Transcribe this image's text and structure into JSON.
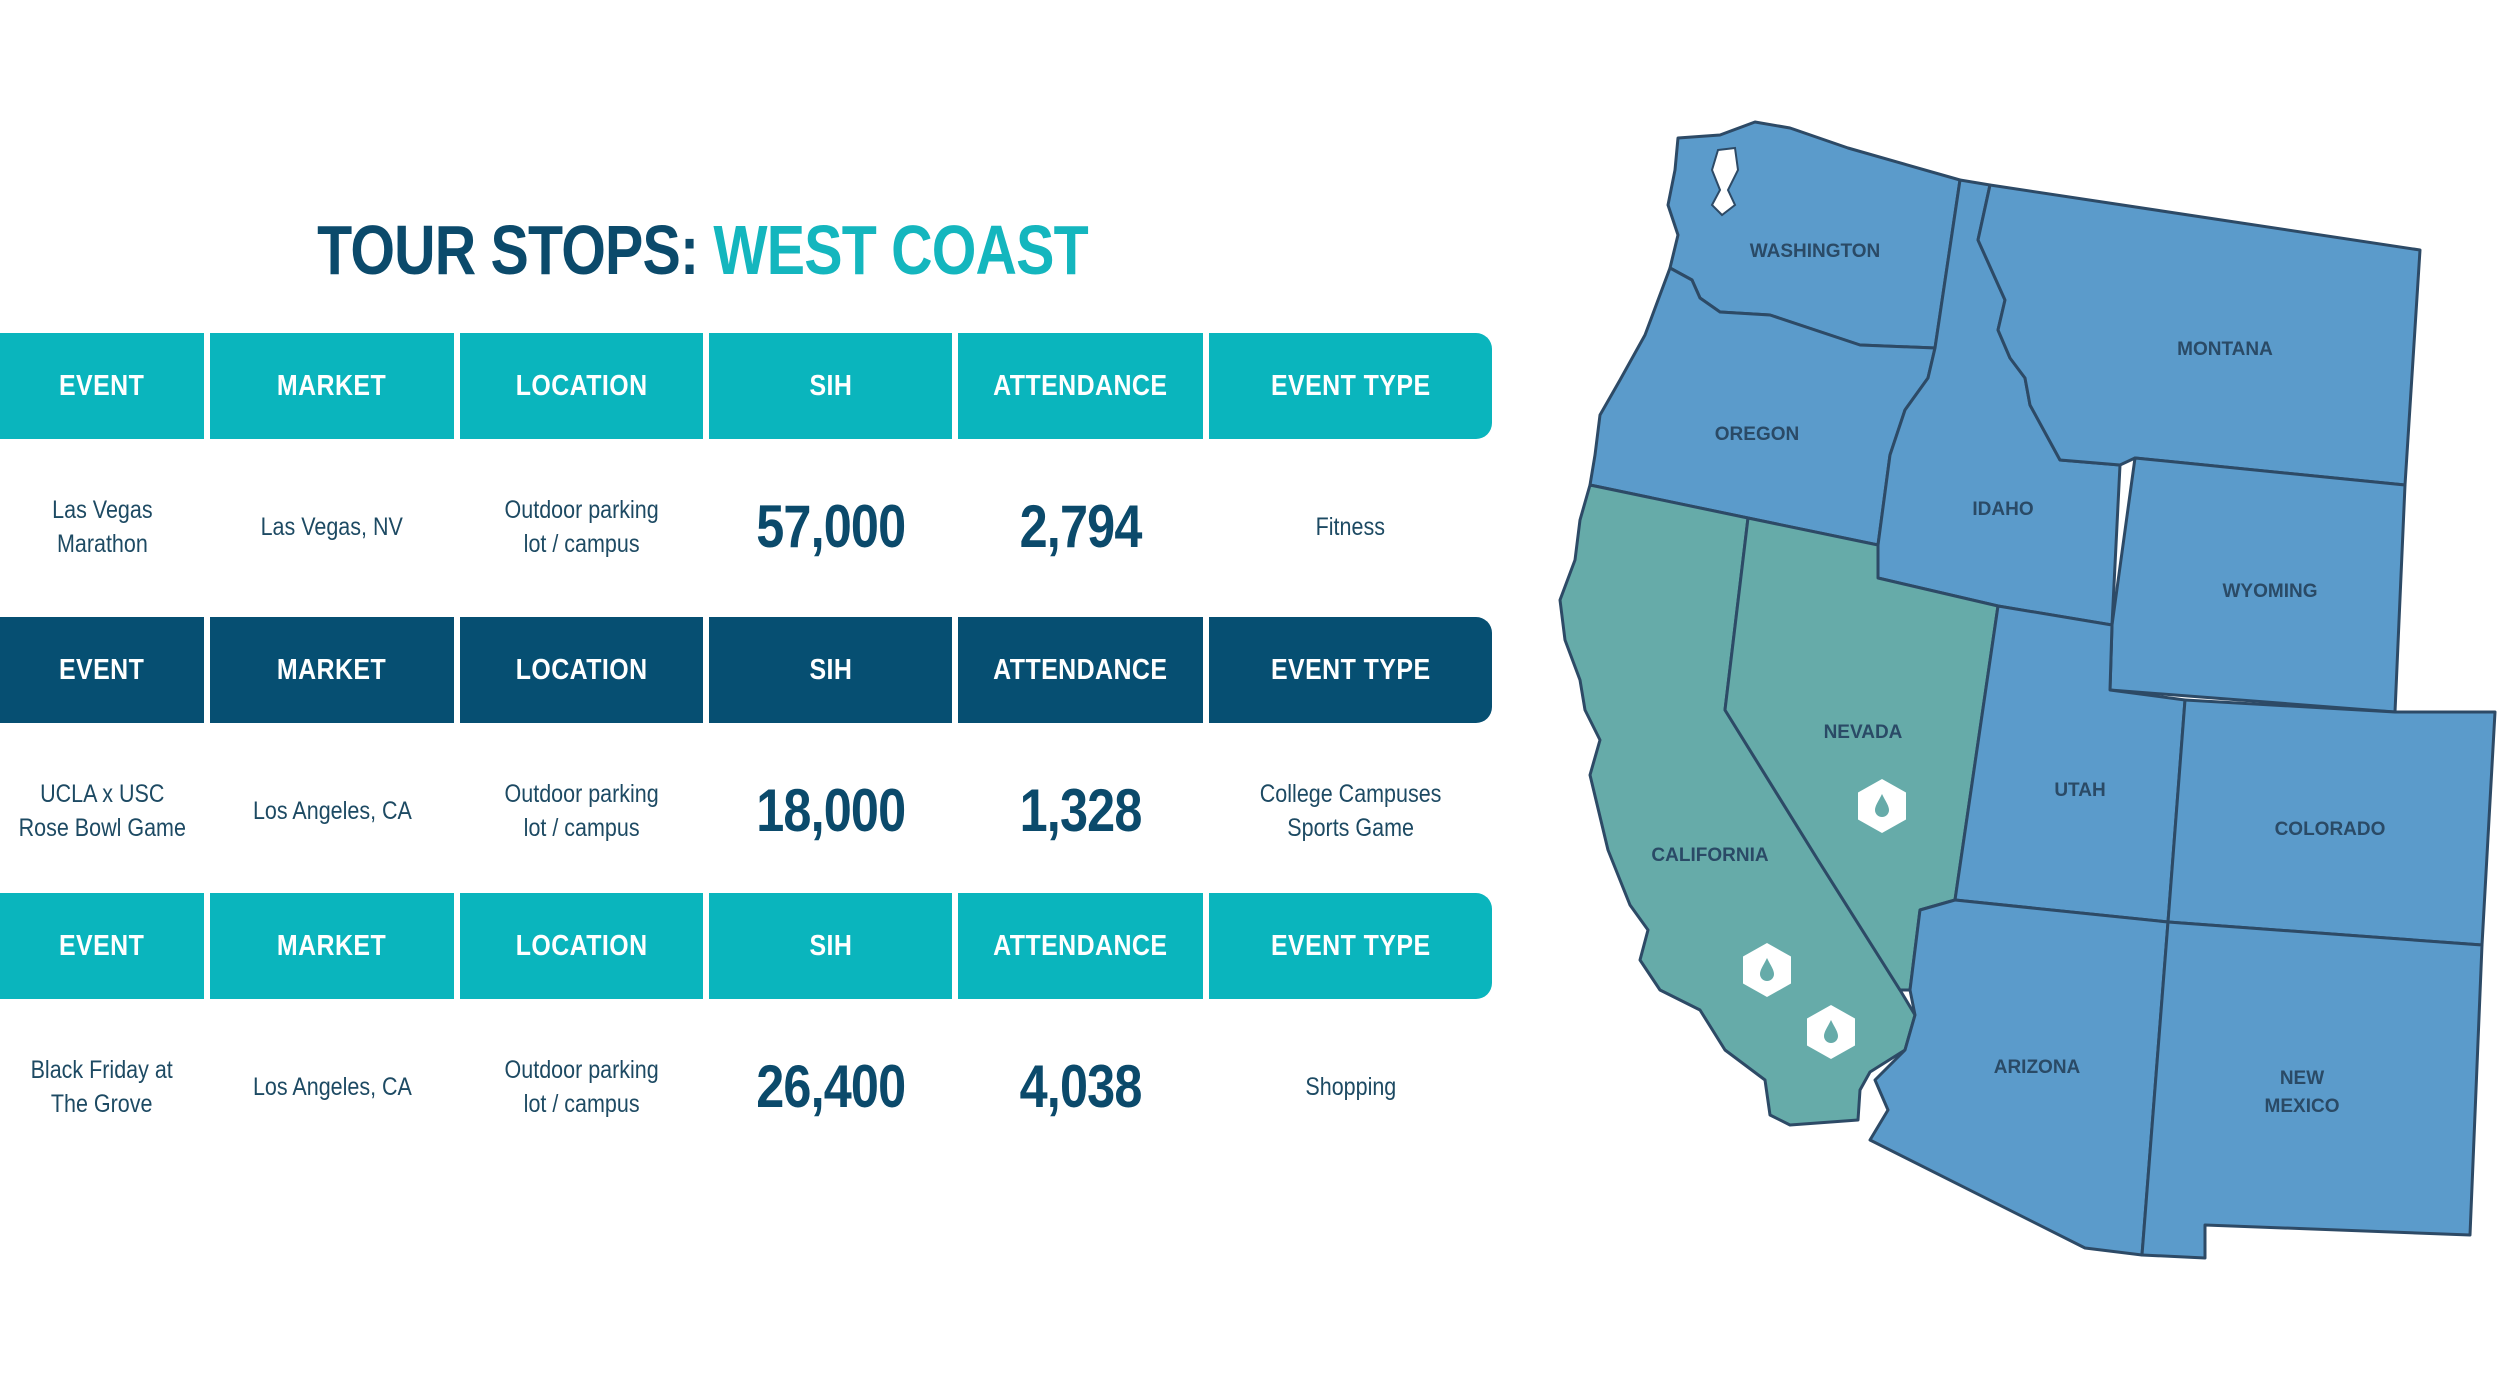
{
  "title": {
    "part1": "TOUR STOPS:",
    "part2": "WEST COAST"
  },
  "columns": [
    "EVENT",
    "MARKET",
    "LOCATION",
    "SIH",
    "ATTENDANCE",
    "EVENT TYPE"
  ],
  "rows": [
    {
      "event": "Las Vegas\nMarathon",
      "market": "Las Vegas, NV",
      "location": "Outdoor parking\nlot / campus",
      "sih": "57,000",
      "attendance": "2,794",
      "event_type": "Fitness"
    },
    {
      "event": "UCLA x USC\nRose Bowl Game",
      "market": "Los Angeles, CA",
      "location": "Outdoor parking\nlot / campus",
      "sih": "18,000",
      "attendance": "1,328",
      "event_type": "College Campuses\nSports Game"
    },
    {
      "event": "Black Friday at\nThe Grove",
      "market": "Los Angeles, CA",
      "location": "Outdoor parking\nlot / campus",
      "sih": "26,400",
      "attendance": "4,038",
      "event_type": "Shopping"
    }
  ],
  "map": {
    "states": [
      "WASHINGTON",
      "MONTANA",
      "OREGON",
      "IDAHO",
      "WYOMING",
      "NEVADA",
      "UTAH",
      "COLORADO",
      "CALIFORNIA",
      "ARIZONA",
      "NEW",
      "MEXICO"
    ],
    "highlighted_states": [
      "CALIFORNIA",
      "NEVADA"
    ],
    "marker_icon": "water-drop-icon",
    "colors": {
      "state": "#5b9bcb",
      "highlight": "#66aba9",
      "border": "#2d4a66",
      "marker": "#ffffff"
    }
  },
  "colors": {
    "header_teal": "#0ab5bd",
    "header_navy": "#064f72",
    "title_dark": "#0b4a6b",
    "title_accent": "#14b6be"
  }
}
